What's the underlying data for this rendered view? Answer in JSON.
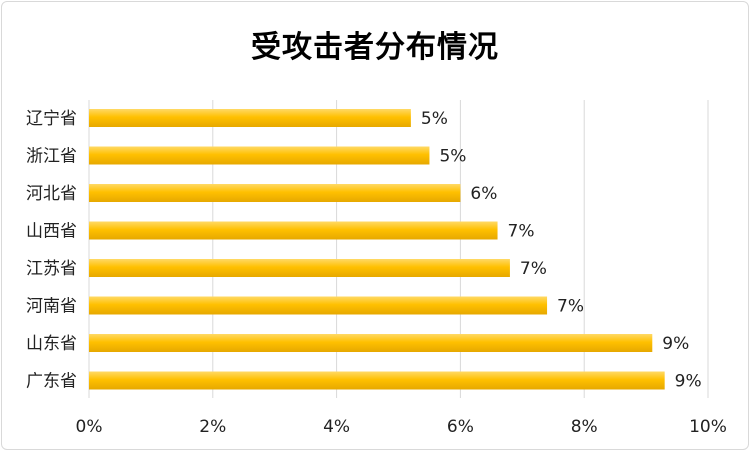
{
  "chart_data": {
    "type": "bar",
    "orientation": "horizontal",
    "title": "受攻击者分布情况",
    "categories": [
      "辽宁省",
      "浙江省",
      "河北省",
      "山西省",
      "江苏省",
      "河南省",
      "山东省",
      "广东省"
    ],
    "values": [
      5.2,
      5.5,
      6.0,
      6.6,
      6.8,
      7.4,
      9.1,
      9.3
    ],
    "data_labels": [
      "5%",
      "5%",
      "6%",
      "7%",
      "7%",
      "7%",
      "9%",
      "9%"
    ],
    "xlim": [
      0,
      10
    ],
    "x_ticks": [
      "0%",
      "2%",
      "4%",
      "6%",
      "8%",
      "10%"
    ],
    "grid": true,
    "legend": "none",
    "bar_color": "#FFC000"
  }
}
